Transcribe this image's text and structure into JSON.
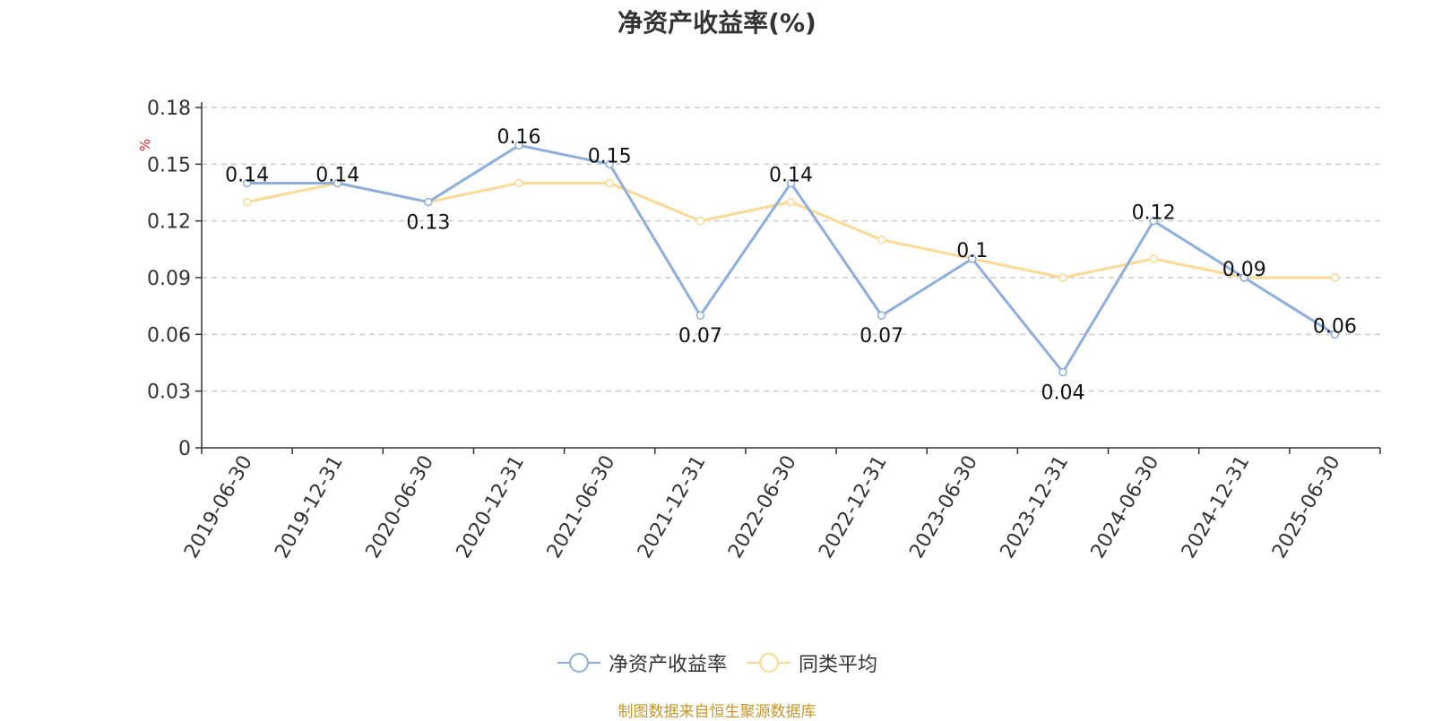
{
  "chart_data": {
    "type": "line",
    "title": "净资产收益率(%)",
    "ylabel": "%",
    "xlabel": "",
    "ylim": [
      0,
      0.18
    ],
    "yticks": [
      "0",
      "0.03",
      "0.06",
      "0.09",
      "0.12",
      "0.15",
      "0.18"
    ],
    "grid": true,
    "legend_position": "bottom",
    "categories": [
      "2019-06-30",
      "2019-12-31",
      "2020-06-30",
      "2020-12-31",
      "2021-06-30",
      "2021-12-31",
      "2022-06-30",
      "2022-12-31",
      "2023-06-30",
      "2023-12-31",
      "2024-06-30",
      "2024-12-31",
      "2025-06-30"
    ],
    "series": [
      {
        "name": "净资产收益率",
        "color": "#8eaedb",
        "values": [
          0.14,
          0.14,
          0.13,
          0.16,
          0.15,
          0.07,
          0.14,
          0.07,
          0.1,
          0.04,
          0.12,
          0.09,
          0.06
        ],
        "labels": [
          "0.14",
          "0.14",
          "0.13",
          "0.16",
          "0.15",
          "0.07",
          "0.14",
          "0.07",
          "0.1",
          "0.04",
          "0.12",
          "0.09",
          "0.06"
        ]
      },
      {
        "name": "同类平均",
        "color": "#fcd995",
        "values": [
          0.13,
          0.14,
          0.13,
          0.14,
          0.14,
          0.12,
          0.13,
          0.11,
          0.1,
          0.09,
          0.1,
          0.09,
          0.09
        ]
      }
    ]
  },
  "source_note": "制图数据来自恒生聚源数据库",
  "axis_unit_color": "#e02020"
}
